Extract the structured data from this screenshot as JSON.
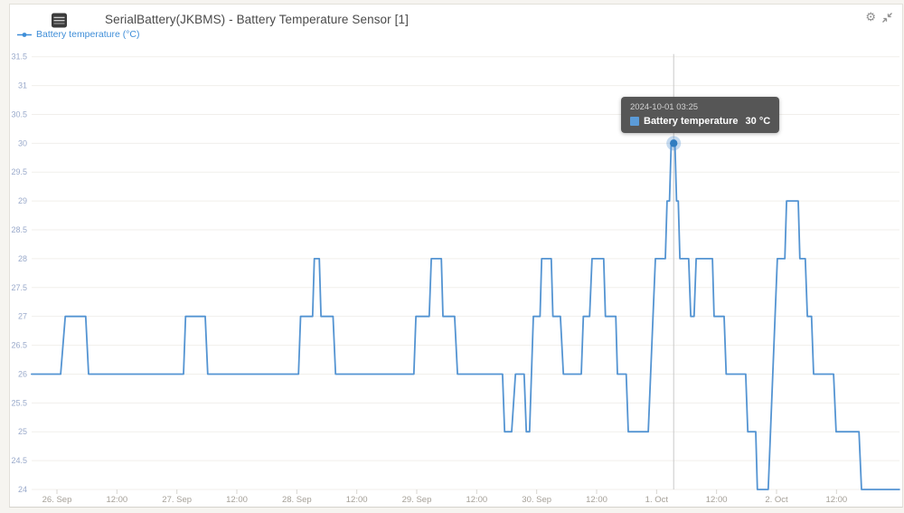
{
  "panel": {
    "title": "SerialBattery(JKBMS) - Battery Temperature Sensor [1]",
    "legend": {
      "label": "Battery temperature (°C)",
      "color": "#3f8ed8"
    },
    "icons": {
      "panel_icon": "battery-bms-icon",
      "settings_icon": "gear-icon",
      "collapse_icon": "compress-icon"
    }
  },
  "tooltip": {
    "timestamp": "2024-10-01 03:25",
    "series": "Battery temperature",
    "value": "30 °C",
    "swatch_color": "#5b9bd8"
  },
  "chart_data": {
    "type": "line",
    "title": "Battery temperature over time",
    "ylim": [
      24,
      31.5
    ],
    "ytick_step": 0.5,
    "grid": "horizontal",
    "legend_position": "top-left",
    "line_color": "#5494d2",
    "grid_color": "#f1efeb",
    "ytick_color": "#9aaacb",
    "xtick_color": "#a5a098",
    "tick_mark_color": "#d8d5d0",
    "crosshair_color": "#c9c9c9",
    "highlight": {
      "time": "2024-10-01 03:25",
      "value": 30,
      "dot_color": "#2f7cc0",
      "halo_color": "rgba(86,150,212,0.35)"
    },
    "xticks": [
      {
        "t": "2024-09-26 00:00",
        "label": "26. Sep"
      },
      {
        "t": "2024-09-26 12:00",
        "label": "12:00"
      },
      {
        "t": "2024-09-27 00:00",
        "label": "27. Sep"
      },
      {
        "t": "2024-09-27 12:00",
        "label": "12:00"
      },
      {
        "t": "2024-09-28 00:00",
        "label": "28. Sep"
      },
      {
        "t": "2024-09-28 12:00",
        "label": "12:00"
      },
      {
        "t": "2024-09-29 00:00",
        "label": "29. Sep"
      },
      {
        "t": "2024-09-29 12:00",
        "label": "12:00"
      },
      {
        "t": "2024-09-30 00:00",
        "label": "30. Sep"
      },
      {
        "t": "2024-09-30 12:00",
        "label": "12:00"
      },
      {
        "t": "2024-10-01 00:00",
        "label": "1. Oct"
      },
      {
        "t": "2024-10-01 12:00",
        "label": "12:00"
      },
      {
        "t": "2024-10-02 00:00",
        "label": "2. Oct"
      },
      {
        "t": "2024-10-02 12:00",
        "label": "12:00"
      }
    ],
    "series": [
      {
        "name": "Battery temperature",
        "unit": "°C",
        "color": "#5494d2",
        "points": [
          [
            "2024-09-25 18:55",
            26
          ],
          [
            "2024-09-26 00:45",
            26
          ],
          [
            "2024-09-26 01:40",
            27
          ],
          [
            "2024-09-26 05:45",
            27
          ],
          [
            "2024-09-26 06:20",
            26
          ],
          [
            "2024-09-27 01:20",
            26
          ],
          [
            "2024-09-27 01:45",
            27
          ],
          [
            "2024-09-27 05:40",
            27
          ],
          [
            "2024-09-27 06:10",
            26
          ],
          [
            "2024-09-28 00:20",
            26
          ],
          [
            "2024-09-28 00:45",
            27
          ],
          [
            "2024-09-28 03:10",
            27
          ],
          [
            "2024-09-28 03:30",
            28
          ],
          [
            "2024-09-28 04:30",
            28
          ],
          [
            "2024-09-28 04:50",
            27
          ],
          [
            "2024-09-28 07:15",
            27
          ],
          [
            "2024-09-28 07:45",
            26
          ],
          [
            "2024-09-28 23:25",
            26
          ],
          [
            "2024-09-28 23:50",
            27
          ],
          [
            "2024-09-29 02:30",
            27
          ],
          [
            "2024-09-29 02:55",
            28
          ],
          [
            "2024-09-29 04:55",
            28
          ],
          [
            "2024-09-29 05:15",
            27
          ],
          [
            "2024-09-29 07:35",
            27
          ],
          [
            "2024-09-29 08:10",
            26
          ],
          [
            "2024-09-29 17:10",
            26
          ],
          [
            "2024-09-29 17:35",
            25
          ],
          [
            "2024-09-29 19:00",
            25
          ],
          [
            "2024-09-29 19:45",
            26
          ],
          [
            "2024-09-29 21:30",
            26
          ],
          [
            "2024-09-29 21:55",
            25
          ],
          [
            "2024-09-29 22:35",
            25
          ],
          [
            "2024-09-29 23:20",
            27
          ],
          [
            "2024-09-30 00:40",
            27
          ],
          [
            "2024-09-30 01:00",
            28
          ],
          [
            "2024-09-30 02:55",
            28
          ],
          [
            "2024-09-30 03:15",
            27
          ],
          [
            "2024-09-30 04:45",
            27
          ],
          [
            "2024-09-30 05:20",
            26
          ],
          [
            "2024-09-30 08:55",
            26
          ],
          [
            "2024-09-30 09:20",
            27
          ],
          [
            "2024-09-30 10:35",
            27
          ],
          [
            "2024-09-30 11:05",
            28
          ],
          [
            "2024-09-30 13:25",
            28
          ],
          [
            "2024-09-30 13:45",
            27
          ],
          [
            "2024-09-30 15:50",
            27
          ],
          [
            "2024-09-30 16:10",
            26
          ],
          [
            "2024-09-30 17:55",
            26
          ],
          [
            "2024-09-30 18:20",
            25
          ],
          [
            "2024-09-30 22:20",
            25
          ],
          [
            "2024-09-30 23:45",
            28
          ],
          [
            "2024-10-01 01:45",
            28
          ],
          [
            "2024-10-01 02:05",
            29
          ],
          [
            "2024-10-01 02:35",
            29
          ],
          [
            "2024-10-01 02:55",
            30
          ],
          [
            "2024-10-01 03:40",
            30
          ],
          [
            "2024-10-01 04:00",
            29
          ],
          [
            "2024-10-01 04:20",
            29
          ],
          [
            "2024-10-01 04:40",
            28
          ],
          [
            "2024-10-01 06:25",
            28
          ],
          [
            "2024-10-01 06:50",
            27
          ],
          [
            "2024-10-01 07:30",
            27
          ],
          [
            "2024-10-01 07:55",
            28
          ],
          [
            "2024-10-01 11:10",
            28
          ],
          [
            "2024-10-01 11:30",
            27
          ],
          [
            "2024-10-01 13:30",
            27
          ],
          [
            "2024-10-01 13:55",
            26
          ],
          [
            "2024-10-01 17:50",
            26
          ],
          [
            "2024-10-01 18:15",
            25
          ],
          [
            "2024-10-01 19:50",
            25
          ],
          [
            "2024-10-01 20:10",
            24
          ],
          [
            "2024-10-01 22:20",
            24
          ],
          [
            "2024-10-02 00:10",
            28
          ],
          [
            "2024-10-02 01:40",
            28
          ],
          [
            "2024-10-02 02:00",
            29
          ],
          [
            "2024-10-02 04:20",
            29
          ],
          [
            "2024-10-02 04:40",
            28
          ],
          [
            "2024-10-02 05:45",
            28
          ],
          [
            "2024-10-02 06:10",
            27
          ],
          [
            "2024-10-02 07:00",
            27
          ],
          [
            "2024-10-02 07:25",
            26
          ],
          [
            "2024-10-02 11:25",
            26
          ],
          [
            "2024-10-02 11:55",
            25
          ],
          [
            "2024-10-02 16:30",
            25
          ],
          [
            "2024-10-02 17:00",
            24
          ],
          [
            "2024-10-03 00:35",
            24
          ]
        ]
      }
    ]
  }
}
